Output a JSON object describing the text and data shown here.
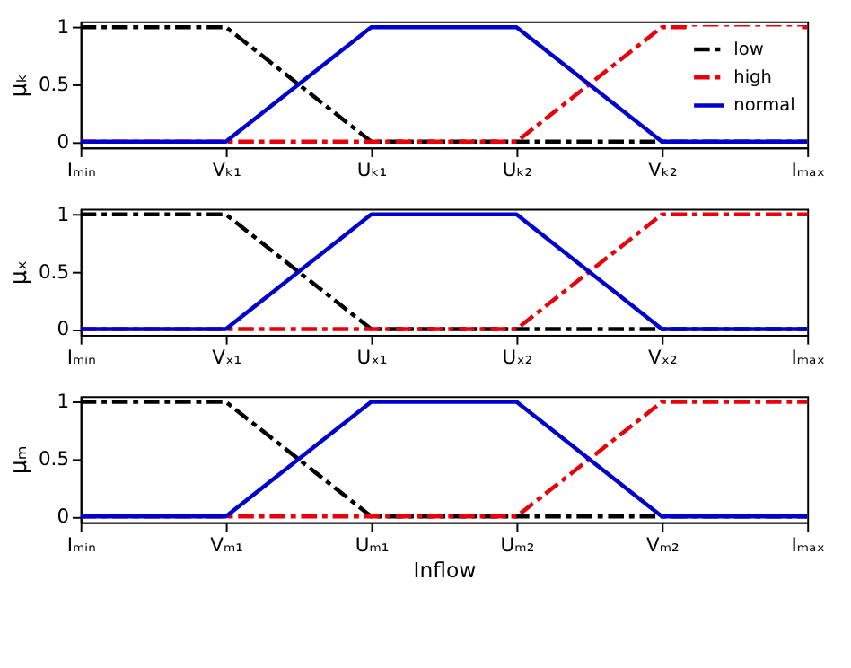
{
  "chart_data": [
    {
      "type": "line",
      "ylabel": "μₖ",
      "legend": "top right",
      "grid": false,
      "ylim": [
        -0.05,
        1.05
      ],
      "yticks": [
        0,
        0.5,
        1
      ],
      "categories": [
        "Iₘᵢₙ",
        "Vₖ₁",
        "Uₖ₁",
        "Uₖ₂",
        "Vₖ₂",
        "Iₘₐₓ"
      ],
      "series": [
        {
          "name": "low",
          "color": "#000000",
          "line_style": "dashed",
          "values": [
            1,
            1,
            0,
            0,
            0,
            0
          ]
        },
        {
          "name": "high",
          "color": "#e8000b",
          "line_style": "dashed",
          "values": [
            0,
            0,
            0,
            0,
            1,
            1
          ]
        },
        {
          "name": "normal",
          "color": "#0000cc",
          "line_style": "solid",
          "values": [
            0,
            0,
            1,
            1,
            0,
            0
          ]
        }
      ]
    },
    {
      "type": "line",
      "ylabel": "μₓ",
      "grid": false,
      "ylim": [
        -0.05,
        1.05
      ],
      "yticks": [
        0,
        0.5,
        1
      ],
      "categories": [
        "Iₘᵢₙ",
        "Vₓ₁",
        "Uₓ₁",
        "Uₓ₂",
        "Vₓ₂",
        "Iₘₐₓ"
      ],
      "series": [
        {
          "color": "#000000",
          "line_style": "dashed",
          "values": [
            1,
            1,
            0,
            0,
            0,
            0
          ]
        },
        {
          "color": "#e8000b",
          "line_style": "dashed",
          "values": [
            0,
            0,
            0,
            0,
            1,
            1
          ]
        },
        {
          "color": "#0000cc",
          "line_style": "solid",
          "values": [
            0,
            0,
            1,
            1,
            0,
            0
          ]
        }
      ]
    },
    {
      "type": "line",
      "ylabel": "μₘ",
      "xlabel": "Inflow",
      "grid": false,
      "ylim": [
        -0.05,
        1.05
      ],
      "yticks": [
        0,
        0.5,
        1
      ],
      "categories": [
        "Iₘᵢₙ",
        "Vₘ₁",
        "Uₘ₁",
        "Uₘ₂",
        "Vₘ₂",
        "Iₘₐₓ"
      ],
      "series": [
        {
          "color": "#000000",
          "line_style": "dashed",
          "values": [
            1,
            1,
            0,
            0,
            0,
            0
          ]
        },
        {
          "color": "#e8000b",
          "line_style": "dashed",
          "values": [
            0,
            0,
            0,
            0,
            1,
            1
          ]
        },
        {
          "color": "#0000cc",
          "line_style": "solid",
          "values": [
            0,
            0,
            1,
            1,
            0,
            0
          ]
        }
      ]
    }
  ]
}
